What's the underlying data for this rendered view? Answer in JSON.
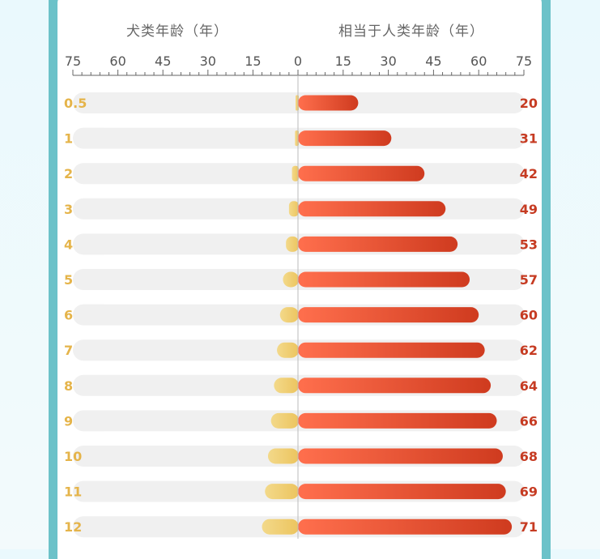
{
  "header": {
    "left_label": "犬类年龄（年）",
    "right_label": "相当于人类年龄（年）"
  },
  "colors": {
    "frame": "#6cc2c9",
    "track": "#f0f0f0",
    "dog_bar_start": "#f3d98a",
    "dog_bar_end": "#ecc45e",
    "human_bar_start": "#ff6f4d",
    "human_bar_end": "#cf3b1f",
    "dog_label": "#e5b44a",
    "human_label": "#c63b22"
  },
  "chart_data": {
    "type": "bar",
    "orientation": "horizontal-diverging",
    "title": "",
    "xlabel_left": "犬类年龄（年）",
    "xlabel_right": "相当于人类年龄（年）",
    "axis_ticks_left": [
      75,
      60,
      45,
      30,
      15,
      0
    ],
    "axis_ticks_right": [
      15,
      30,
      45,
      60,
      75
    ],
    "xlim": [
      0,
      75
    ],
    "categories": [
      "0.5",
      "1",
      "2",
      "3",
      "4",
      "5",
      "6",
      "7",
      "8",
      "9",
      "10",
      "11",
      "12"
    ],
    "series": [
      {
        "name": "犬类年龄（年）",
        "values": [
          0.5,
          1,
          2,
          3,
          4,
          5,
          6,
          7,
          8,
          9,
          10,
          11,
          12
        ]
      },
      {
        "name": "相当于人类年龄（年）",
        "values": [
          20,
          31,
          42,
          49,
          53,
          57,
          60,
          62,
          64,
          66,
          68,
          69,
          71
        ]
      }
    ]
  }
}
